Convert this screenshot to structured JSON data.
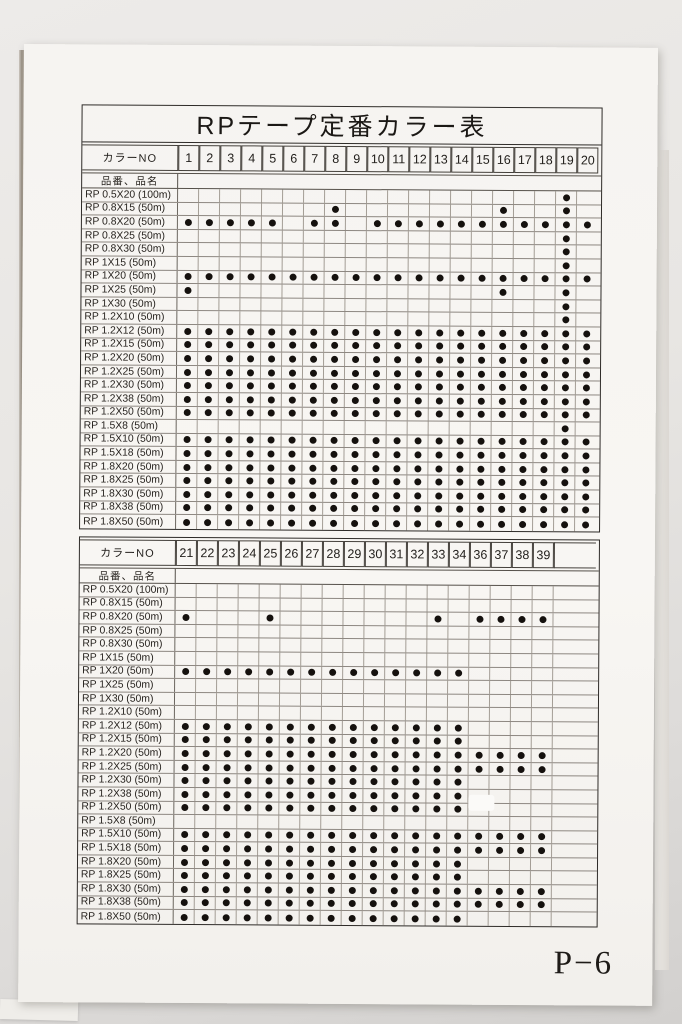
{
  "page": {
    "page_number": "P−6"
  },
  "tables": [
    {
      "title": "RPテープ定番カラー表",
      "color_no_label": "カラーNO",
      "item_header_label": "品番、品名",
      "columns": [
        "1",
        "2",
        "3",
        "4",
        "5",
        "6",
        "7",
        "8",
        "9",
        "10",
        "11",
        "12",
        "13",
        "14",
        "15",
        "16",
        "17",
        "18",
        "19",
        "20"
      ],
      "trailing_blank_span": 0,
      "rows": [
        {
          "name": "RP 0.5X20 (100m)",
          "dots": [
            19
          ]
        },
        {
          "name": "RP 0.8X15 (50m)",
          "dots": [
            8,
            16,
            19
          ]
        },
        {
          "name": "RP 0.8X20 (50m)",
          "dots": [
            1,
            2,
            3,
            4,
            5,
            7,
            8,
            10,
            11,
            12,
            13,
            14,
            15,
            16,
            17,
            18,
            19,
            20
          ]
        },
        {
          "name": "RP 0.8X25 (50m)",
          "dots": [
            19
          ]
        },
        {
          "name": "RP 0.8X30 (50m)",
          "dots": [
            19
          ]
        },
        {
          "name": "RP 1X15 (50m)",
          "dots": [
            19
          ]
        },
        {
          "name": "RP 1X20 (50m)",
          "dots": [
            1,
            2,
            3,
            4,
            5,
            6,
            7,
            8,
            9,
            10,
            11,
            12,
            13,
            14,
            15,
            16,
            17,
            18,
            19,
            20
          ]
        },
        {
          "name": "RP 1X25 (50m)",
          "dots": [
            1,
            16,
            19
          ]
        },
        {
          "name": "RP 1X30 (50m)",
          "dots": [
            19
          ]
        },
        {
          "name": "RP 1.2X10 (50m)",
          "dots": [
            19
          ]
        },
        {
          "name": "RP 1.2X12 (50m)",
          "dots": [
            1,
            2,
            3,
            4,
            5,
            6,
            7,
            8,
            9,
            10,
            11,
            12,
            13,
            14,
            15,
            16,
            17,
            18,
            19,
            20
          ]
        },
        {
          "name": "RP 1.2X15 (50m)",
          "dots": [
            1,
            2,
            3,
            4,
            5,
            6,
            7,
            8,
            9,
            10,
            11,
            12,
            13,
            14,
            15,
            16,
            17,
            18,
            19,
            20
          ]
        },
        {
          "name": "RP 1.2X20 (50m)",
          "dots": [
            1,
            2,
            3,
            4,
            5,
            6,
            7,
            8,
            9,
            10,
            11,
            12,
            13,
            14,
            15,
            16,
            17,
            18,
            19,
            20
          ]
        },
        {
          "name": "RP 1.2X25 (50m)",
          "dots": [
            1,
            2,
            3,
            4,
            5,
            6,
            7,
            8,
            9,
            10,
            11,
            12,
            13,
            14,
            15,
            16,
            17,
            18,
            19,
            20
          ]
        },
        {
          "name": "RP 1.2X30 (50m)",
          "dots": [
            1,
            2,
            3,
            4,
            5,
            6,
            7,
            8,
            9,
            10,
            11,
            12,
            13,
            14,
            15,
            16,
            17,
            18,
            19,
            20
          ]
        },
        {
          "name": "RP 1.2X38 (50m)",
          "dots": [
            1,
            2,
            3,
            4,
            5,
            6,
            7,
            8,
            9,
            10,
            11,
            12,
            13,
            14,
            15,
            16,
            17,
            18,
            19,
            20
          ]
        },
        {
          "name": "RP 1.2X50 (50m)",
          "dots": [
            1,
            2,
            3,
            4,
            5,
            6,
            7,
            8,
            9,
            10,
            11,
            12,
            13,
            14,
            15,
            16,
            17,
            18,
            19,
            20
          ]
        },
        {
          "name": "RP 1.5X8 (50m)",
          "dots": [
            19
          ]
        },
        {
          "name": "RP 1.5X10 (50m)",
          "dots": [
            1,
            2,
            3,
            4,
            5,
            6,
            7,
            8,
            9,
            10,
            11,
            12,
            13,
            14,
            15,
            16,
            17,
            18,
            19,
            20
          ]
        },
        {
          "name": "RP 1.5X18 (50m)",
          "dots": [
            1,
            2,
            3,
            4,
            5,
            6,
            7,
            8,
            9,
            10,
            11,
            12,
            13,
            14,
            15,
            16,
            17,
            18,
            19,
            20
          ]
        },
        {
          "name": "RP 1.8X20 (50m)",
          "dots": [
            1,
            2,
            3,
            4,
            5,
            6,
            7,
            8,
            9,
            10,
            11,
            12,
            13,
            14,
            15,
            16,
            17,
            18,
            19,
            20
          ]
        },
        {
          "name": "RP 1.8X25 (50m)",
          "dots": [
            1,
            2,
            3,
            4,
            5,
            6,
            7,
            8,
            9,
            10,
            11,
            12,
            13,
            14,
            15,
            16,
            17,
            18,
            19,
            20
          ]
        },
        {
          "name": "RP 1.8X30 (50m)",
          "dots": [
            1,
            2,
            3,
            4,
            5,
            6,
            7,
            8,
            9,
            10,
            11,
            12,
            13,
            14,
            15,
            16,
            17,
            18,
            19,
            20
          ]
        },
        {
          "name": "RP 1.8X38 (50m)",
          "dots": [
            1,
            2,
            3,
            4,
            5,
            6,
            7,
            8,
            9,
            10,
            11,
            12,
            13,
            14,
            15,
            16,
            17,
            18,
            19,
            20
          ]
        },
        {
          "name": "RP 1.8X50 (50m)",
          "dots": [
            1,
            2,
            3,
            4,
            5,
            6,
            7,
            8,
            9,
            10,
            11,
            12,
            13,
            14,
            15,
            16,
            17,
            18,
            19,
            20
          ]
        }
      ]
    },
    {
      "title": "",
      "color_no_label": "カラーNO",
      "item_header_label": "品番、品名",
      "columns": [
        "21",
        "22",
        "23",
        "24",
        "25",
        "26",
        "27",
        "28",
        "29",
        "30",
        "31",
        "32",
        "33",
        "34",
        "36",
        "37",
        "38",
        "39"
      ],
      "trailing_blank_span": 2,
      "rows": [
        {
          "name": "RP 0.5X20 (100m)",
          "dots": []
        },
        {
          "name": "RP 0.8X15 (50m)",
          "dots": []
        },
        {
          "name": "RP 0.8X20 (50m)",
          "dots": [
            21,
            25,
            33,
            36,
            37,
            38,
            39
          ]
        },
        {
          "name": "RP 0.8X25 (50m)",
          "dots": []
        },
        {
          "name": "RP 0.8X30 (50m)",
          "dots": []
        },
        {
          "name": "RP 1X15 (50m)",
          "dots": []
        },
        {
          "name": "RP 1X20 (50m)",
          "dots": [
            21,
            22,
            23,
            24,
            25,
            26,
            27,
            28,
            29,
            30,
            31,
            32,
            33,
            34
          ]
        },
        {
          "name": "RP 1X25 (50m)",
          "dots": []
        },
        {
          "name": "RP 1X30 (50m)",
          "dots": []
        },
        {
          "name": "RP 1.2X10 (50m)",
          "dots": []
        },
        {
          "name": "RP 1.2X12 (50m)",
          "dots": [
            21,
            22,
            23,
            24,
            25,
            26,
            27,
            28,
            29,
            30,
            31,
            32,
            33,
            34
          ]
        },
        {
          "name": "RP 1.2X15 (50m)",
          "dots": [
            21,
            22,
            23,
            24,
            25,
            26,
            27,
            28,
            29,
            30,
            31,
            32,
            33,
            34
          ]
        },
        {
          "name": "RP 1.2X20 (50m)",
          "dots": [
            21,
            22,
            23,
            24,
            25,
            26,
            27,
            28,
            29,
            30,
            31,
            32,
            33,
            34,
            36,
            37,
            38,
            39
          ]
        },
        {
          "name": "RP 1.2X25 (50m)",
          "dots": [
            21,
            22,
            23,
            24,
            25,
            26,
            27,
            28,
            29,
            30,
            31,
            32,
            33,
            34,
            36,
            37,
            38,
            39
          ]
        },
        {
          "name": "RP 1.2X30 (50m)",
          "dots": [
            21,
            22,
            23,
            24,
            25,
            26,
            27,
            28,
            29,
            30,
            31,
            32,
            33,
            34
          ]
        },
        {
          "name": "RP 1.2X38 (50m)",
          "dots": [
            21,
            22,
            23,
            24,
            25,
            26,
            27,
            28,
            29,
            30,
            31,
            32,
            33,
            34
          ]
        },
        {
          "name": "RP 1.2X50 (50m)",
          "dots": [
            21,
            22,
            23,
            24,
            25,
            26,
            27,
            28,
            29,
            30,
            31,
            32,
            33,
            34
          ]
        },
        {
          "name": "RP 1.5X8 (50m)",
          "dots": []
        },
        {
          "name": "RP 1.5X10 (50m)",
          "dots": [
            21,
            22,
            23,
            24,
            25,
            26,
            27,
            28,
            29,
            30,
            31,
            32,
            33,
            34,
            36,
            37,
            38,
            39
          ]
        },
        {
          "name": "RP 1.5X18 (50m)",
          "dots": [
            21,
            22,
            23,
            24,
            25,
            26,
            27,
            28,
            29,
            30,
            31,
            32,
            33,
            34,
            36,
            37,
            38,
            39
          ]
        },
        {
          "name": "RP 1.8X20 (50m)",
          "dots": [
            21,
            22,
            23,
            24,
            25,
            26,
            27,
            28,
            29,
            30,
            31,
            32,
            33,
            34
          ]
        },
        {
          "name": "RP 1.8X25 (50m)",
          "dots": [
            21,
            22,
            23,
            24,
            25,
            26,
            27,
            28,
            29,
            30,
            31,
            32,
            33,
            34
          ]
        },
        {
          "name": "RP 1.8X30 (50m)",
          "dots": [
            21,
            22,
            23,
            24,
            25,
            26,
            27,
            28,
            29,
            30,
            31,
            32,
            33,
            34,
            36,
            37,
            38,
            39
          ]
        },
        {
          "name": "RP 1.8X38 (50m)",
          "dots": [
            21,
            22,
            23,
            24,
            25,
            26,
            27,
            28,
            29,
            30,
            31,
            32,
            33,
            34,
            36,
            37,
            38,
            39
          ]
        },
        {
          "name": "RP 1.8X50 (50m)",
          "dots": [
            21,
            22,
            23,
            24,
            25,
            26,
            27,
            28,
            29,
            30,
            31,
            32,
            33,
            34
          ]
        }
      ]
    }
  ]
}
